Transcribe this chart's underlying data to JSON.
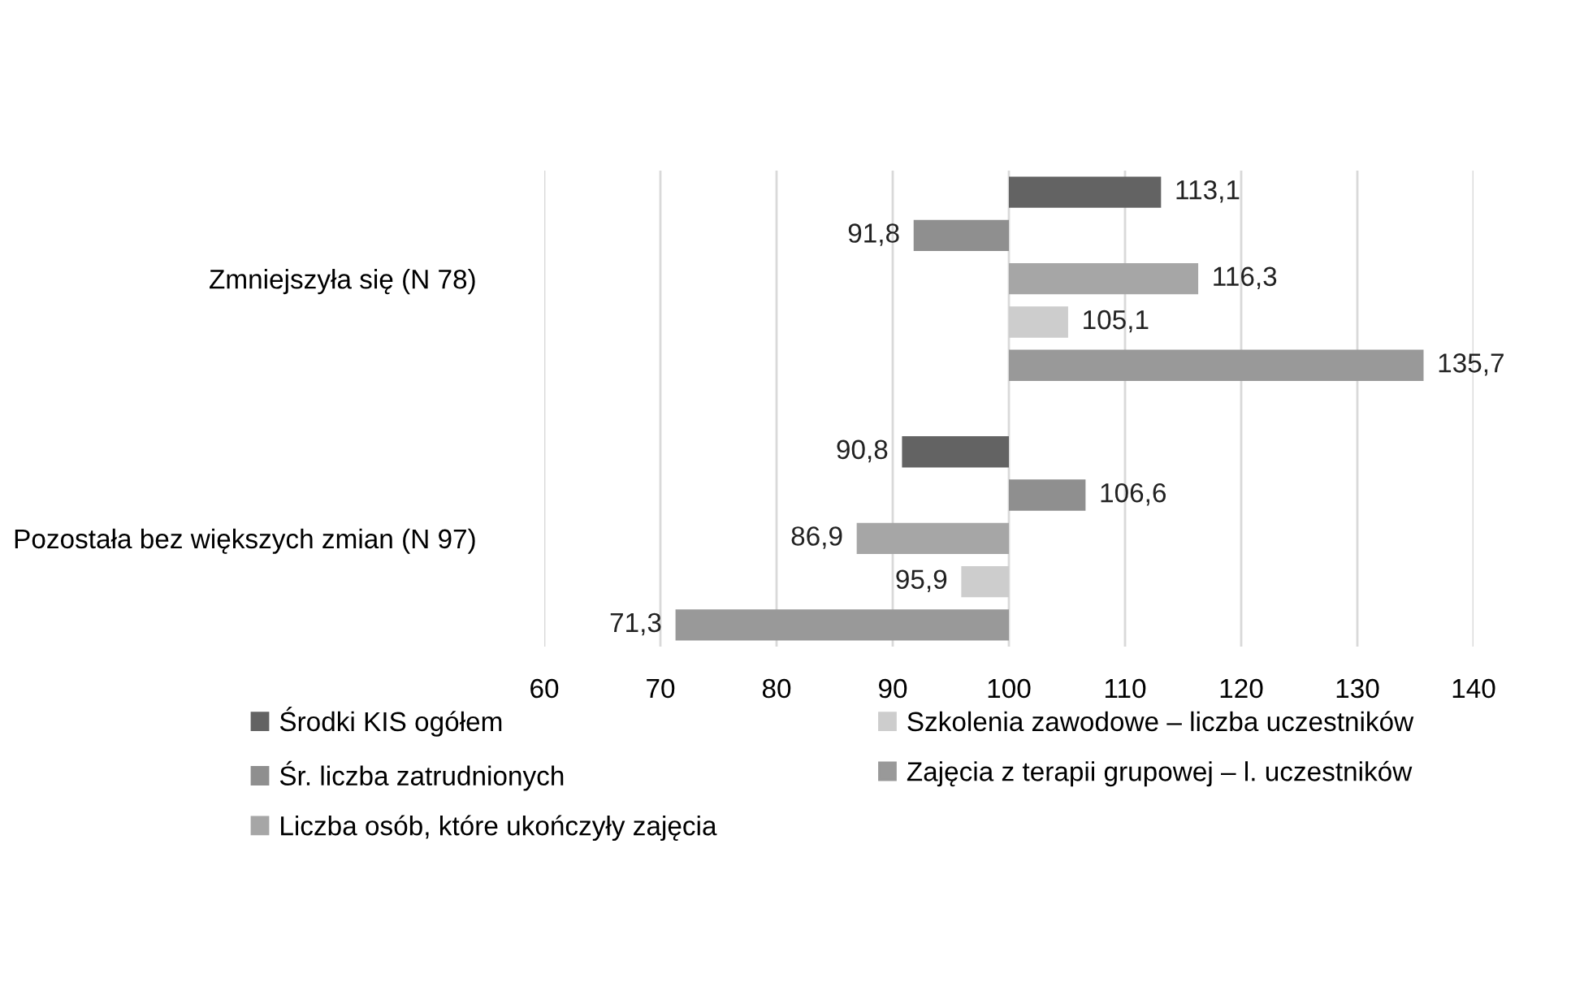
{
  "chart_data": {
    "type": "bar",
    "orientation": "horizontal",
    "categories": [
      "Zmniejszyła się (N 78)",
      "Pozostała bez większych zmian (N 97)"
    ],
    "series": [
      {
        "name": "Środki KIS ogółem",
        "color": "#636363",
        "base": [
          100,
          100
        ],
        "values": [
          13.1,
          -9.2
        ],
        "value_labels": [
          "113,1",
          "90,8"
        ]
      },
      {
        "name": "Śr. liczba zatrudnionych",
        "color": "#8f8f8f",
        "base": [
          100,
          100
        ],
        "values": [
          -8.2,
          6.6
        ],
        "value_labels": [
          "91,8",
          "106,6"
        ]
      },
      {
        "name": "Liczba osób, które ukończyły zajęcia",
        "color": "#a6a6a6",
        "base": [
          100,
          100
        ],
        "values": [
          16.3,
          -13.1
        ],
        "value_labels": [
          "116,3",
          "86,9"
        ]
      },
      {
        "name": "Szkolenia zawodowe – liczba uczestników",
        "color": "#cdcdcd",
        "base": [
          100,
          100
        ],
        "values": [
          5.1,
          -4.1
        ],
        "value_labels": [
          "105,1",
          "95,9"
        ]
      },
      {
        "name": "Zajęcia z terapii grupowej – l. uczestników",
        "color": "#999999",
        "base": [
          100,
          100
        ],
        "values": [
          35.7,
          -28.7
        ],
        "value_labels": [
          "135,7",
          "71,3"
        ]
      }
    ],
    "xlim": [
      60,
      140
    ],
    "xticks": [
      60,
      70,
      80,
      90,
      100,
      110,
      120,
      130,
      140
    ],
    "grid": "x",
    "legend": "bottom"
  }
}
